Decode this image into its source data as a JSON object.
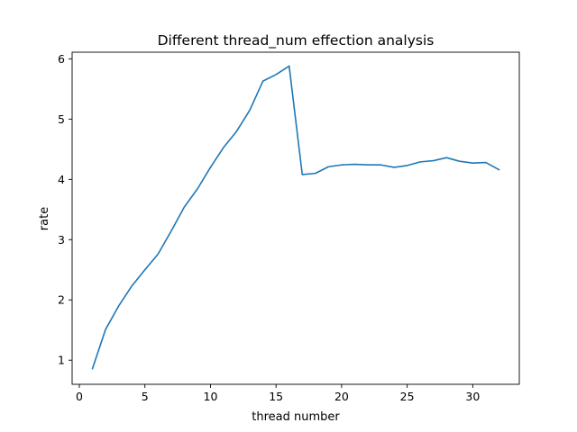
{
  "chart_data": {
    "type": "line",
    "title": "Different thread_num effection analysis",
    "xlabel": "thread number",
    "ylabel": "rate",
    "xlim": [
      -0.55,
      33.55
    ],
    "ylim": [
      0.6,
      6.11
    ],
    "xticks": [
      0,
      5,
      10,
      15,
      20,
      25,
      30
    ],
    "yticks": [
      1,
      2,
      3,
      4,
      5,
      6
    ],
    "grid": false,
    "legend": "none",
    "series": [
      {
        "color": "#1f77b4",
        "x": [
          1,
          2,
          3,
          4,
          5,
          6,
          7,
          8,
          9,
          10,
          11,
          12,
          13,
          14,
          15,
          16,
          17,
          18,
          19,
          20,
          21,
          22,
          23,
          24,
          25,
          26,
          27,
          28,
          29,
          30,
          31,
          32
        ],
        "y": [
          0.86,
          1.51,
          1.9,
          2.23,
          2.5,
          2.76,
          3.14,
          3.54,
          3.84,
          4.2,
          4.53,
          4.8,
          5.15,
          5.63,
          5.74,
          5.88,
          4.08,
          4.1,
          4.21,
          4.24,
          4.25,
          4.24,
          4.24,
          4.2,
          4.23,
          4.29,
          4.31,
          4.36,
          4.3,
          4.27,
          4.28,
          4.16
        ]
      }
    ]
  }
}
